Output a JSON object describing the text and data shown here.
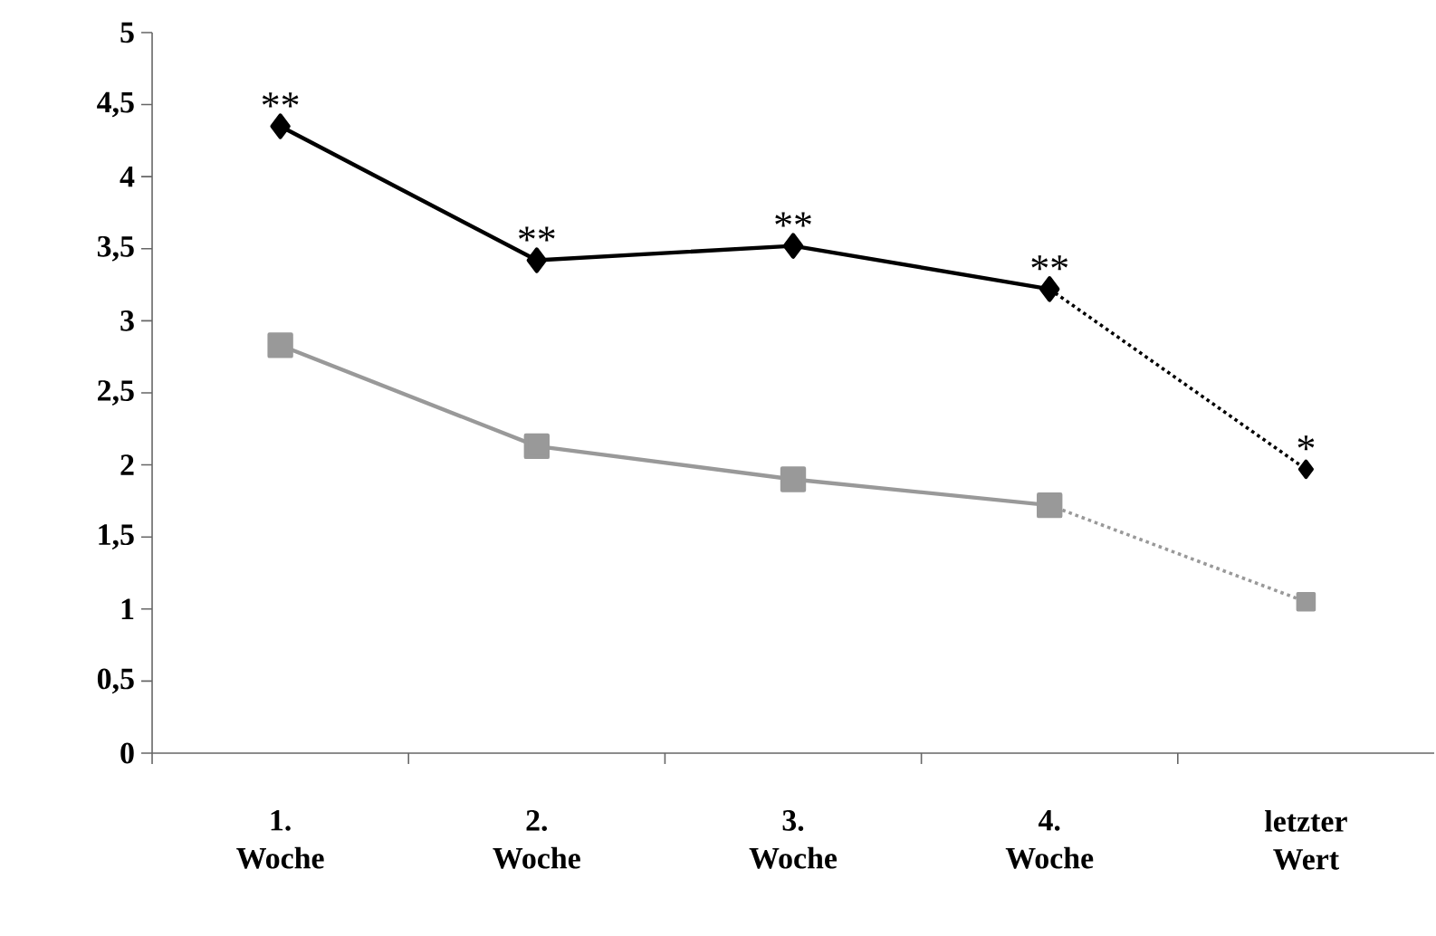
{
  "chart_data": {
    "type": "line",
    "categories": [
      "1. Woche",
      "2. Woche",
      "3. Woche",
      "4. Woche",
      "letzter Wert"
    ],
    "series": [
      {
        "color": "#000000",
        "marker": "diamond",
        "line_style": "solid",
        "values": [
          4.35,
          3.42,
          3.52,
          3.22,
          null
        ]
      },
      {
        "color": "#000000",
        "marker": "diamond",
        "line_style": "dotted",
        "values": [
          null,
          null,
          null,
          3.22,
          1.97
        ]
      },
      {
        "color": "#999999",
        "marker": "square",
        "line_style": "solid",
        "values": [
          2.83,
          2.13,
          1.9,
          1.72,
          null
        ]
      },
      {
        "color": "#999999",
        "marker": "square",
        "line_style": "dotted",
        "values": [
          null,
          null,
          null,
          1.72,
          1.05
        ]
      }
    ],
    "ylim": [
      0,
      5
    ],
    "yticks": [
      0,
      {
        "value": 0.5,
        "label": "0,5"
      },
      1,
      {
        "value": 1.5,
        "label": "1,5"
      },
      2,
      {
        "value": 2.5,
        "label": "2,5"
      },
      3,
      {
        "value": 3.5,
        "label": "3,5"
      },
      4,
      {
        "value": 4.5,
        "label": "4,5"
      },
      5
    ],
    "annotations": [
      {
        "text": "**",
        "x": "1. Woche",
        "y": 4.35
      },
      {
        "text": "**",
        "x": "2. Woche",
        "y": 3.42
      },
      {
        "text": "**",
        "x": "3. Woche",
        "y": 3.52
      },
      {
        "text": "**",
        "x": "4. Woche",
        "y": 3.22
      },
      {
        "text": "*",
        "x": "letzter Wert",
        "y": 1.97
      }
    ]
  }
}
